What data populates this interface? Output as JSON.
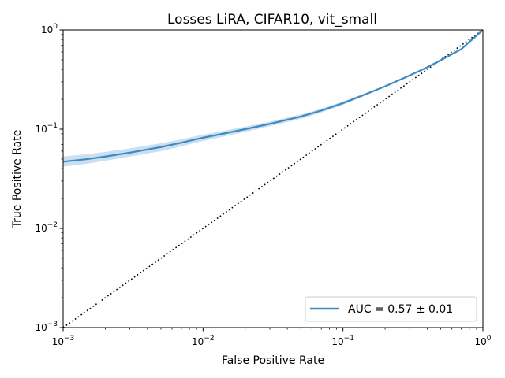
{
  "chart_data": {
    "type": "line",
    "title": "Losses LiRA, CIFAR10, vit_small",
    "xlabel": "False Positive Rate",
    "ylabel": "True Positive Rate",
    "xscale": "log",
    "yscale": "log",
    "xlim": [
      0.001,
      1
    ],
    "ylim": [
      0.001,
      1
    ],
    "x_ticks": [
      {
        "value": 0.001,
        "label": "10",
        "exp": "−3"
      },
      {
        "value": 0.01,
        "label": "10",
        "exp": "−2"
      },
      {
        "value": 0.1,
        "label": "10",
        "exp": "−1"
      },
      {
        "value": 1,
        "label": "10",
        "exp": "0"
      }
    ],
    "y_ticks": [
      {
        "value": 0.001,
        "label": "10",
        "exp": "−3"
      },
      {
        "value": 0.01,
        "label": "10",
        "exp": "−2"
      },
      {
        "value": 0.1,
        "label": "10",
        "exp": "−1"
      },
      {
        "value": 1,
        "label": "10",
        "exp": "0"
      }
    ],
    "grid": false,
    "legend_position": "lower-right",
    "series": [
      {
        "name": "AUC = 0.57 ± 0.01",
        "color": "#3b8bc2",
        "band_color": "#c6dbef",
        "x": [
          0.001,
          0.0015,
          0.002,
          0.003,
          0.005,
          0.007,
          0.01,
          0.015,
          0.02,
          0.03,
          0.05,
          0.07,
          0.1,
          0.15,
          0.2,
          0.3,
          0.4,
          0.5,
          0.7,
          1.0
        ],
        "y": [
          0.047,
          0.05,
          0.053,
          0.058,
          0.066,
          0.073,
          0.082,
          0.092,
          0.1,
          0.113,
          0.134,
          0.154,
          0.183,
          0.229,
          0.27,
          0.348,
          0.42,
          0.495,
          0.64,
          1.0
        ],
        "y_lower": [
          0.042,
          0.045,
          0.048,
          0.053,
          0.06,
          0.067,
          0.076,
          0.086,
          0.094,
          0.107,
          0.127,
          0.147,
          0.176,
          0.223,
          0.265,
          0.343,
          0.416,
          0.492,
          0.637,
          1.0
        ],
        "y_upper": [
          0.053,
          0.056,
          0.059,
          0.064,
          0.072,
          0.079,
          0.088,
          0.098,
          0.106,
          0.119,
          0.141,
          0.161,
          0.19,
          0.235,
          0.275,
          0.353,
          0.424,
          0.498,
          0.643,
          1.0
        ]
      },
      {
        "name": "",
        "style": "dotted",
        "color": "#000000",
        "x": [
          0.001,
          1
        ],
        "y": [
          0.001,
          1
        ]
      }
    ]
  }
}
